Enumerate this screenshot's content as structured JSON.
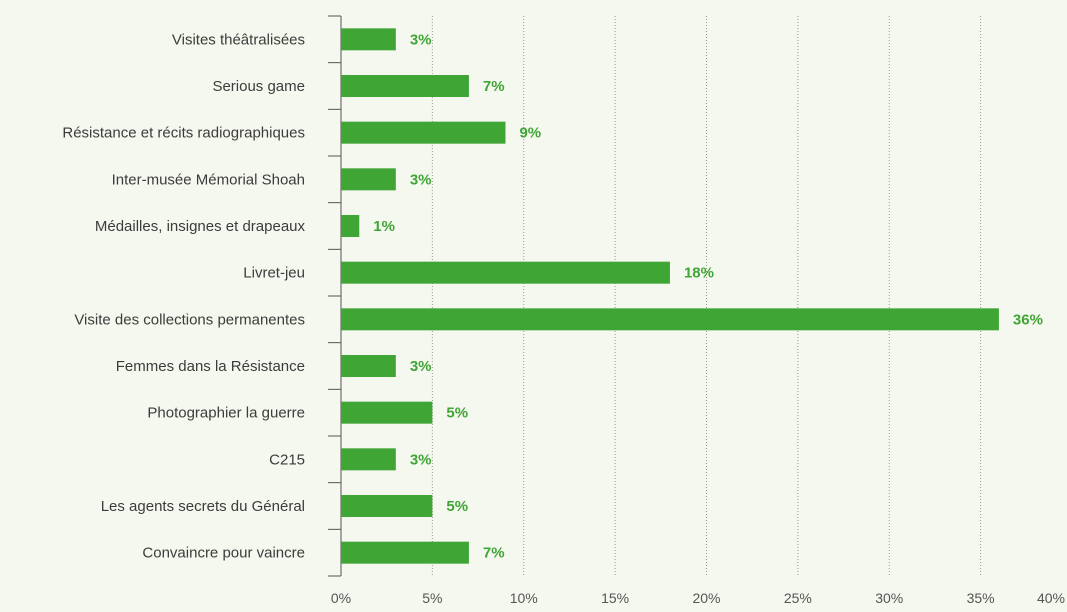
{
  "chart_data": {
    "type": "bar",
    "orientation": "horizontal",
    "categories": [
      "Visites théâtralisées",
      "Serious game",
      "Résistance et récits radiographiques",
      "Inter-musée Mémorial Shoah",
      "Médailles, insignes et drapeaux",
      "Livret-jeu",
      "Visite des collections permanentes",
      "Femmes dans la Résistance",
      "Photographier la guerre",
      "C215",
      "Les agents secrets du Général",
      "Convaincre pour vaincre"
    ],
    "values": [
      3,
      7,
      9,
      3,
      1,
      18,
      36,
      3,
      5,
      3,
      5,
      7
    ],
    "value_labels": [
      "3%",
      "7%",
      "9%",
      "3%",
      "1%",
      "18%",
      "36%",
      "3%",
      "5%",
      "3%",
      "5%",
      "7%"
    ],
    "xlim": [
      0,
      40
    ],
    "x_ticks": [
      0,
      5,
      10,
      15,
      20,
      25,
      30,
      35,
      40
    ],
    "x_tick_labels": [
      "0%",
      "5%",
      "10%",
      "15%",
      "20%",
      "25%",
      "30%",
      "35%",
      "40%"
    ],
    "grid": true,
    "grid_style": "dotted vertical",
    "colors": {
      "bar": "#3fa535",
      "value_label": "#3fa535",
      "background": "#f5f8ef",
      "axis": "#555555",
      "grid": "#999999"
    }
  }
}
